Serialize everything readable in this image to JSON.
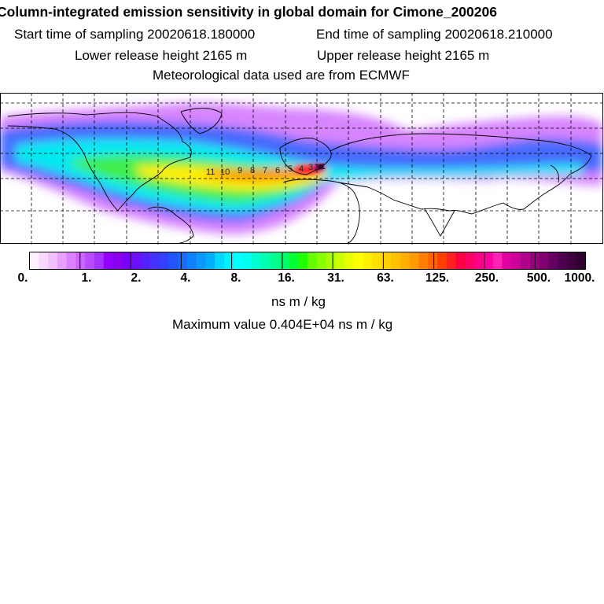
{
  "header": {
    "title": "Column-integrated emission sensitivity in global domain for Cimone_200206",
    "start_time": "Start time of sampling 20020618.180000",
    "end_time": "End time of sampling 20020618.210000",
    "lower_release": "Lower release height 2165 m",
    "upper_release": "Upper release height 2165 m",
    "met_data": "Meteorological data used are from ECMWF"
  },
  "map": {
    "release_site": "Cimone",
    "backtrack_day_labels": [
      "11",
      "10",
      "9",
      "8",
      "7",
      "6",
      "5",
      "4",
      "3",
      "2",
      "1"
    ],
    "graticule": "dashed",
    "colors": {
      "plume_low": "#e090ff",
      "plume_mid": "#00ffff",
      "plume_high": "#ffb000",
      "source": "#4a0030"
    }
  },
  "colorbar": {
    "tick_labels": [
      "0.",
      "1.",
      "2.",
      "4.",
      "8.",
      "16.",
      "31.",
      "63.",
      "125.",
      "250.",
      "500.",
      "1000."
    ],
    "colors": [
      "#fff0ff",
      "#f8d8ff",
      "#f0c0ff",
      "#e8a0ff",
      "#dd80ff",
      "#cc66ff",
      "#b84dff",
      "#a533ff",
      "#9200ff",
      "#8a00ee",
      "#7a00ff",
      "#6a10ff",
      "#5522ff",
      "#4433ff",
      "#3340ff",
      "#2255ff",
      "#1a6aff",
      "#1080ff",
      "#0a98ff",
      "#00b0ff",
      "#00d8ff",
      "#00f0ff",
      "#00ffff",
      "#00ffee",
      "#00ffd0",
      "#00ffb0",
      "#00ff90",
      "#00ff66",
      "#00ff33",
      "#22ff00",
      "#66ff00",
      "#88ff00",
      "#aaff00",
      "#ccff00",
      "#e8ff00",
      "#ffff00",
      "#fff000",
      "#ffe000",
      "#ffd000",
      "#ffc000",
      "#ffb000",
      "#ff9a00",
      "#ff8000",
      "#ff6600",
      "#ff4000",
      "#ff2020",
      "#ff0040",
      "#ff0066",
      "#ff0088",
      "#ff00a0",
      "#ff22b0",
      "#e000a0",
      "#cc0099",
      "#b0008a",
      "#990080",
      "#800070",
      "#660060",
      "#500050",
      "#400040",
      "#300030"
    ],
    "units": "ns m / kg",
    "max_value": "Maximum value  0.404E+04 ns m / kg"
  }
}
